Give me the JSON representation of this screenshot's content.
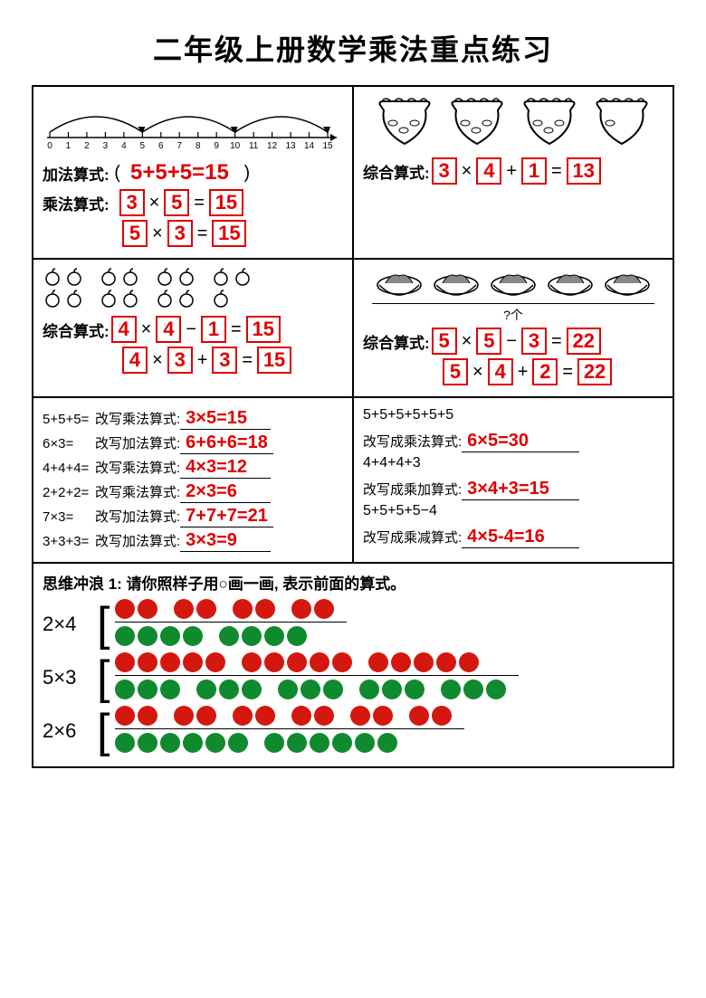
{
  "title": "二年级上册数学乘法重点练习",
  "colors": {
    "answer_red": "#e00000",
    "dot_red": "#d4180f",
    "dot_green": "#108a2e",
    "black": "#000000",
    "bg": "#ffffff"
  },
  "panel1": {
    "numberline": {
      "start": 0,
      "end": 15,
      "jumps": [
        5,
        10,
        15
      ]
    },
    "add_label": "加法算式:",
    "add_expr": "5+5+5=15",
    "mul_label": "乘法算式:",
    "mul_eq1": {
      "a": "3",
      "b": "5",
      "r": "15"
    },
    "mul_eq2": {
      "a": "5",
      "b": "3",
      "r": "15"
    }
  },
  "panel2": {
    "bowls": [
      3,
      3,
      3,
      1
    ],
    "label": "综合算式:",
    "eq": {
      "a": "3",
      "op1": "×",
      "b": "4",
      "op2": "+",
      "c": "1",
      "r": "13"
    }
  },
  "panel3": {
    "apple_groups": [
      4,
      4,
      4,
      3
    ],
    "label": "综合算式:",
    "eq1": {
      "a": "4",
      "op1": "×",
      "b": "4",
      "op2": "−",
      "c": "1",
      "r": "15"
    },
    "eq2": {
      "a": "4",
      "op1": "×",
      "b": "3",
      "op2": "+",
      "c": "3",
      "r": "15"
    }
  },
  "panel4": {
    "baskets": 5,
    "qmark": "?个",
    "label": "综合算式:",
    "eq1": {
      "a": "5",
      "op1": "×",
      "b": "5",
      "op2": "−",
      "c": "3",
      "r": "22"
    },
    "eq2": {
      "a": "5",
      "op1": "×",
      "b": "4",
      "op2": "+",
      "c": "2",
      "r": "22"
    }
  },
  "panel5_left": [
    {
      "q": "5+5+5=",
      "lbl": "改写乘法算式:",
      "ans": "3×5=15"
    },
    {
      "q": "6×3=",
      "lbl": "改写加法算式:",
      "ans": "6+6+6=18"
    },
    {
      "q": "4+4+4=",
      "lbl": "改写乘法算式:",
      "ans": "4×3=12"
    },
    {
      "q": "2+2+2=",
      "lbl": "改写乘法算式:",
      "ans": "2×3=6"
    },
    {
      "q": "7×3=",
      "lbl": "改写加法算式:",
      "ans": "7+7+7=21"
    },
    {
      "q": "3+3+3=",
      "lbl": "改写加法算式:",
      "ans": "3×3=9"
    }
  ],
  "panel5_right": [
    {
      "q": "5+5+5+5+5+5",
      "lbl": "改写成乘法算式:",
      "ans": "6×5=30"
    },
    {
      "q": "4+4+4+3",
      "lbl": "改写成乘加算式:",
      "ans": "3×4+3=15"
    },
    {
      "q": "5+5+5+5−4",
      "lbl": "改写成乘减算式:",
      "ans": "4×5-4=16"
    }
  ],
  "panel6": {
    "title": "思维冲浪 1:  请你照样子用○画一画, 表示前面的算式。",
    "items": [
      {
        "expr": "2×4",
        "rows": [
          {
            "color": "r",
            "groups": [
              2,
              2,
              2,
              2
            ]
          },
          {
            "color": "g",
            "groups": [
              4,
              4
            ]
          }
        ]
      },
      {
        "expr": "5×3",
        "rows": [
          {
            "color": "r",
            "groups": [
              5,
              5,
              5
            ]
          },
          {
            "color": "g",
            "groups": [
              3,
              3,
              3,
              3,
              3
            ]
          }
        ]
      },
      {
        "expr": "2×6",
        "rows": [
          {
            "color": "r",
            "groups": [
              2,
              2,
              2,
              2,
              2,
              2
            ]
          },
          {
            "color": "g",
            "groups": [
              6,
              6
            ]
          }
        ]
      }
    ]
  }
}
